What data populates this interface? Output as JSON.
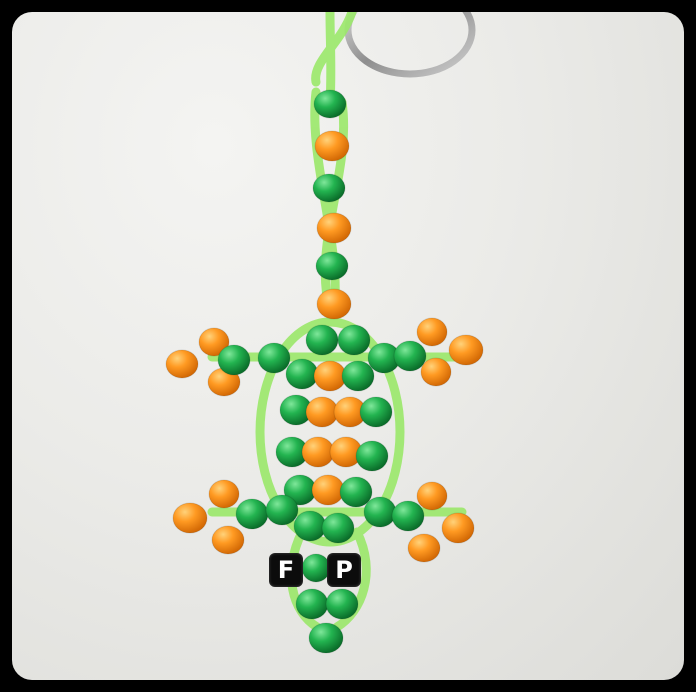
{
  "photo": {
    "subject": "beaded-lizard-keychain",
    "letters": [
      "F",
      "P"
    ],
    "colors": {
      "wall": "#e9e9e6",
      "bead_green": "#1fa34a",
      "bead_orange": "#ff9422",
      "lace": "#9be86a",
      "ring": "#a9a9a9",
      "frame": "#000000"
    }
  }
}
